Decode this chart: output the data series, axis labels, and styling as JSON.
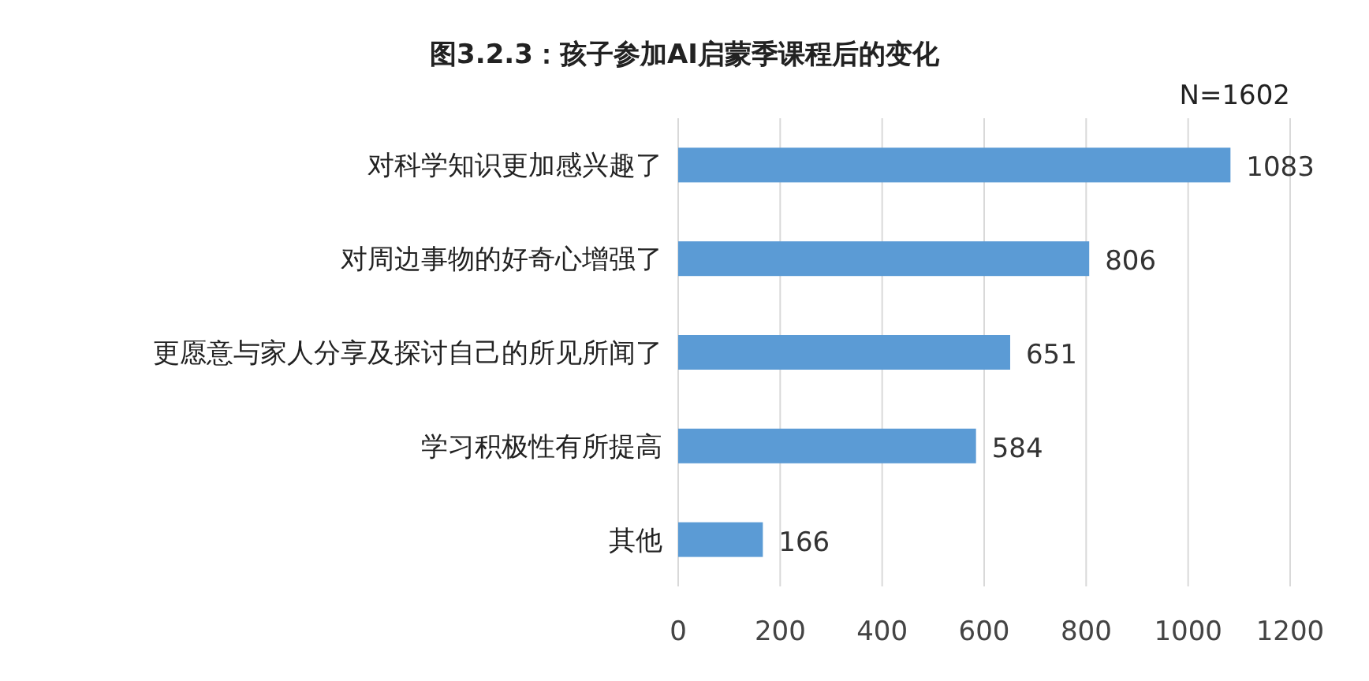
{
  "chart_data": {
    "type": "bar",
    "orientation": "horizontal",
    "title": "图3.2.3：孩子参加AI启蒙季课程后的变化",
    "categories": [
      "对科学知识更加感兴趣了",
      "对周边事物的好奇心增强了",
      "更愿意与家人分享及探讨自己的所见所闻了",
      "学习积极性有所提高",
      "其他"
    ],
    "values": [
      1083,
      806,
      651,
      584,
      166
    ],
    "color": "#5b9bd5",
    "xlim": [
      0,
      1200
    ],
    "xticks": [
      0,
      200,
      400,
      600,
      800,
      1000,
      1200
    ],
    "grid": "x",
    "data_labels": true,
    "annotations": [
      "N=1602"
    ]
  }
}
